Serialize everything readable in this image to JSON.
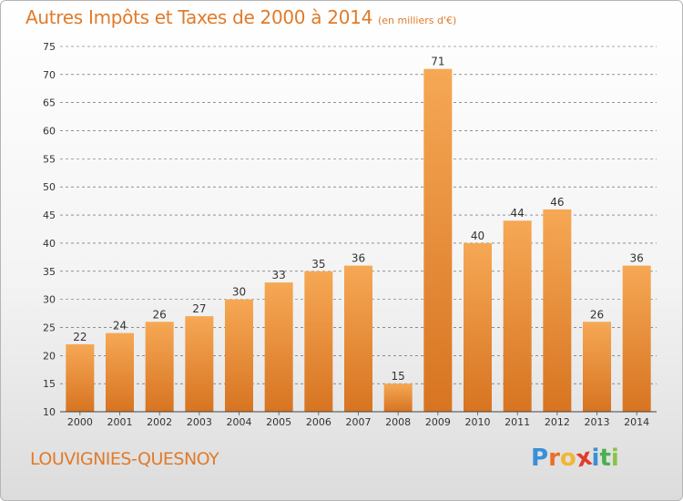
{
  "title": "Autres Impôts et Taxes de 2000 à 2014",
  "subtitle": "(en milliers d'€)",
  "location": "LOUVIGNIES-QUESNOY",
  "brand": {
    "letters": [
      "P",
      "r",
      "o",
      "x",
      "i",
      "t",
      "i"
    ],
    "colors": [
      "#3a8fd6",
      "#e8702a",
      "#f2b632",
      "#e23a2a",
      "#3a8fd6",
      "#4caf50",
      "#8bc34a"
    ]
  },
  "colors": {
    "bar_top": "#f6a855",
    "bar_bottom": "#d77421",
    "accent": "#e07b2a",
    "grid": "#555555",
    "text": "#333333"
  },
  "chart_data": {
    "type": "bar",
    "categories": [
      "2000",
      "2001",
      "2002",
      "2003",
      "2004",
      "2005",
      "2006",
      "2007",
      "2008",
      "2009",
      "2010",
      "2011",
      "2012",
      "2013",
      "2014"
    ],
    "values": [
      22,
      24,
      26,
      27,
      30,
      33,
      35,
      36,
      15,
      71,
      40,
      44,
      46,
      26,
      36
    ],
    "ylim": [
      10,
      75
    ],
    "yticks": [
      10,
      15,
      20,
      25,
      30,
      35,
      40,
      45,
      50,
      55,
      60,
      65,
      70,
      75
    ],
    "grid": true,
    "xlabel": "",
    "ylabel": ""
  }
}
